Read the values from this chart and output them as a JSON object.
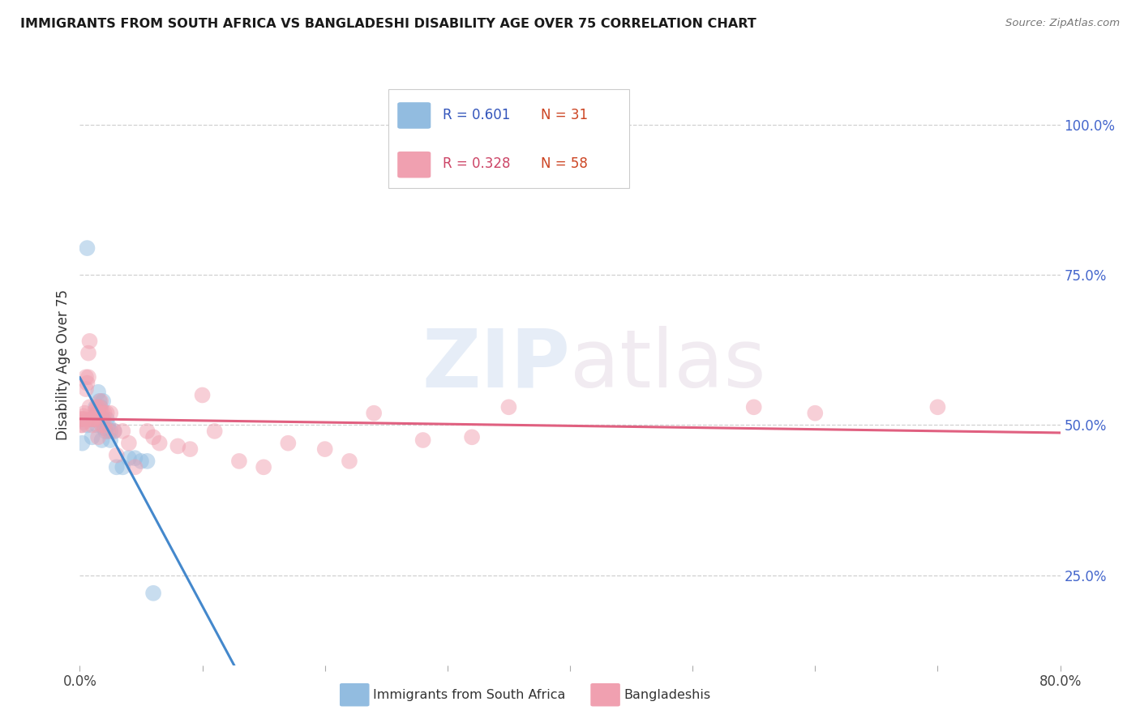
{
  "title": "IMMIGRANTS FROM SOUTH AFRICA VS BANGLADESHI DISABILITY AGE OVER 75 CORRELATION CHART",
  "source": "Source: ZipAtlas.com",
  "ylabel": "Disability Age Over 75",
  "right_yticklabels": [
    "25.0%",
    "50.0%",
    "75.0%",
    "100.0%"
  ],
  "right_ytick_vals": [
    0.25,
    0.5,
    0.75,
    1.0
  ],
  "watermark_zip": "ZIP",
  "watermark_atlas": "atlas",
  "legend_blue_r": "R = 0.601",
  "legend_blue_n": "N = 31",
  "legend_pink_r": "R = 0.328",
  "legend_pink_n": "N = 58",
  "legend_label_blue": "Immigrants from South Africa",
  "legend_label_pink": "Bangladeshis",
  "blue_color": "#92bce0",
  "pink_color": "#f0a0b0",
  "blue_line_color": "#4488cc",
  "pink_line_color": "#e06080",
  "blue_scatter_x": [
    0.002,
    0.006,
    0.006,
    0.01,
    0.01,
    0.012,
    0.013,
    0.014,
    0.014,
    0.015,
    0.016,
    0.016,
    0.017,
    0.018,
    0.018,
    0.019,
    0.019,
    0.02,
    0.021,
    0.022,
    0.023,
    0.025,
    0.025,
    0.028,
    0.03,
    0.035,
    0.04,
    0.045,
    0.05,
    0.055,
    0.06
  ],
  "blue_scatter_y": [
    0.47,
    0.795,
    0.5,
    0.51,
    0.48,
    0.51,
    0.53,
    0.52,
    0.5,
    0.555,
    0.54,
    0.51,
    0.53,
    0.5,
    0.475,
    0.54,
    0.51,
    0.495,
    0.49,
    0.51,
    0.5,
    0.475,
    0.49,
    0.49,
    0.43,
    0.43,
    0.445,
    0.445,
    0.44,
    0.44,
    0.22
  ],
  "pink_scatter_x": [
    0.001,
    0.001,
    0.002,
    0.002,
    0.003,
    0.003,
    0.004,
    0.004,
    0.005,
    0.005,
    0.006,
    0.007,
    0.007,
    0.008,
    0.008,
    0.009,
    0.01,
    0.01,
    0.011,
    0.012,
    0.013,
    0.013,
    0.014,
    0.015,
    0.015,
    0.016,
    0.017,
    0.018,
    0.018,
    0.02,
    0.02,
    0.022,
    0.023,
    0.025,
    0.028,
    0.03,
    0.035,
    0.04,
    0.045,
    0.055,
    0.06,
    0.065,
    0.08,
    0.09,
    0.1,
    0.11,
    0.13,
    0.15,
    0.17,
    0.2,
    0.22,
    0.24,
    0.28,
    0.32,
    0.35,
    0.55,
    0.6,
    0.7
  ],
  "pink_scatter_y": [
    0.5,
    0.51,
    0.5,
    0.51,
    0.505,
    0.515,
    0.51,
    0.52,
    0.56,
    0.58,
    0.57,
    0.58,
    0.62,
    0.64,
    0.53,
    0.51,
    0.5,
    0.51,
    0.51,
    0.51,
    0.515,
    0.525,
    0.53,
    0.48,
    0.52,
    0.53,
    0.54,
    0.5,
    0.52,
    0.52,
    0.5,
    0.52,
    0.49,
    0.52,
    0.49,
    0.45,
    0.49,
    0.47,
    0.43,
    0.49,
    0.48,
    0.47,
    0.465,
    0.46,
    0.55,
    0.49,
    0.44,
    0.43,
    0.47,
    0.46,
    0.44,
    0.52,
    0.475,
    0.48,
    0.53,
    0.53,
    0.52,
    0.53
  ],
  "xlim": [
    0.0,
    0.8
  ],
  "ylim": [
    0.1,
    1.1
  ],
  "xtick_positions": [
    0.0,
    0.1,
    0.2,
    0.3,
    0.4,
    0.5,
    0.6,
    0.7,
    0.8
  ],
  "background_color": "#ffffff",
  "grid_color": "#d0d0d0",
  "grid_style": "--"
}
